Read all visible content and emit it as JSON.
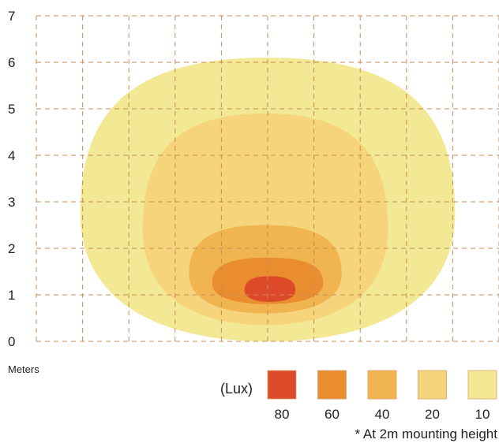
{
  "chart_data": {
    "type": "heatmap",
    "title": "",
    "ylabel": "",
    "units_label": "Meters",
    "y_ticks": [
      "0",
      "1",
      "2",
      "3",
      "4",
      "5",
      "6",
      "7"
    ],
    "ylim": [
      0,
      7
    ],
    "x_grid_columns": 10,
    "grid": true,
    "legend": {
      "title": "(Lux)",
      "placement": "bottom-right",
      "items": [
        {
          "label": "80",
          "value": 80,
          "color": "#dc4a2a"
        },
        {
          "label": "60",
          "value": 60,
          "color": "#e98d2e"
        },
        {
          "label": "40",
          "value": 40,
          "color": "#f0b551"
        },
        {
          "label": "20",
          "value": 20,
          "color": "#f5d47c"
        },
        {
          "label": "10",
          "value": 10,
          "color": "#f3e894"
        }
      ]
    },
    "isolux_zones_m": [
      {
        "lux": 10,
        "x_range_grid": [
          0.95,
          9.05
        ],
        "y_range": [
          0,
          6.1
        ]
      },
      {
        "lux": 20,
        "x_range_grid": [
          2.3,
          7.6
        ],
        "y_range": [
          0.35,
          4.9
        ]
      },
      {
        "lux": 40,
        "x_range_grid": [
          3.3,
          6.6
        ],
        "y_range": [
          0.6,
          2.5
        ]
      },
      {
        "lux": 60,
        "x_range_grid": [
          3.8,
          6.2
        ],
        "y_range": [
          0.8,
          1.8
        ]
      },
      {
        "lux": 80,
        "x_range_grid": [
          4.5,
          5.6
        ],
        "y_range": [
          0.85,
          1.4
        ]
      }
    ],
    "footnote": "* At 2m mounting height"
  }
}
